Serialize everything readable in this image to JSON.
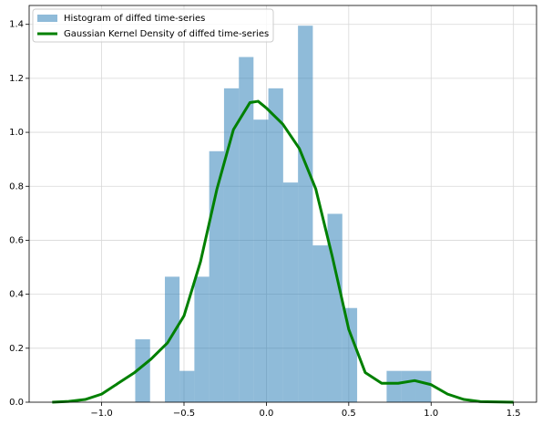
{
  "chart_data": {
    "type": "histogram",
    "series": [
      {
        "type": "histogram",
        "name": "Histogram of diffed time-series",
        "color": "#1f77b4",
        "opacity": 0.5,
        "bins": [
          -0.796,
          -0.706,
          -0.616,
          -0.527,
          -0.437,
          -0.347,
          -0.257,
          -0.167,
          -0.078,
          0.012,
          0.102,
          0.192,
          0.282,
          0.371,
          0.461,
          0.551,
          0.641,
          0.73,
          0.82,
          0.91,
          1.0
        ],
        "values": [
          0.233,
          0,
          0.465,
          0.116,
          0.465,
          0.93,
          1.163,
          1.279,
          1.047,
          1.163,
          0.814,
          1.395,
          0.581,
          0.698,
          0.349,
          0,
          0,
          0.116,
          0.116,
          0.116
        ]
      },
      {
        "type": "line",
        "name": "Gaussian Kernel Density of diffed time-series",
        "color": "#008000",
        "x": [
          -1.3,
          -1.2,
          -1.1,
          -1.0,
          -0.9,
          -0.8,
          -0.7,
          -0.6,
          -0.5,
          -0.4,
          -0.3,
          -0.2,
          -0.1,
          -0.05,
          0.0,
          0.1,
          0.2,
          0.3,
          0.4,
          0.5,
          0.6,
          0.7,
          0.8,
          0.9,
          1.0,
          1.1,
          1.2,
          1.3,
          1.5
        ],
        "values": [
          0.0,
          0.003,
          0.01,
          0.03,
          0.07,
          0.11,
          0.16,
          0.22,
          0.32,
          0.52,
          0.79,
          1.01,
          1.11,
          1.115,
          1.09,
          1.03,
          0.94,
          0.79,
          0.54,
          0.27,
          0.11,
          0.07,
          0.07,
          0.08,
          0.065,
          0.03,
          0.01,
          0.002,
          0.0
        ]
      }
    ],
    "xlim": [
      -1.44,
      1.64
    ],
    "ylim": [
      0,
      1.47
    ],
    "xticks": [
      {
        "value": -1.0,
        "label": "−1.0"
      },
      {
        "value": -0.5,
        "label": "−0.5"
      },
      {
        "value": 0.0,
        "label": "0.0"
      },
      {
        "value": 0.5,
        "label": "0.5"
      },
      {
        "value": 1.0,
        "label": "1.0"
      },
      {
        "value": 1.5,
        "label": "1.5"
      }
    ],
    "yticks": [
      {
        "value": 0,
        "label": "0.0"
      },
      {
        "value": 0.2,
        "label": "0.2"
      },
      {
        "value": 0.4,
        "label": "0.4"
      },
      {
        "value": 0.6,
        "label": "0.6"
      },
      {
        "value": 0.8,
        "label": "0.8"
      },
      {
        "value": 1.0,
        "label": "1.0"
      },
      {
        "value": 1.2,
        "label": "1.2"
      },
      {
        "value": 1.4,
        "label": "1.4"
      }
    ],
    "grid": true,
    "legend": "upper left"
  }
}
